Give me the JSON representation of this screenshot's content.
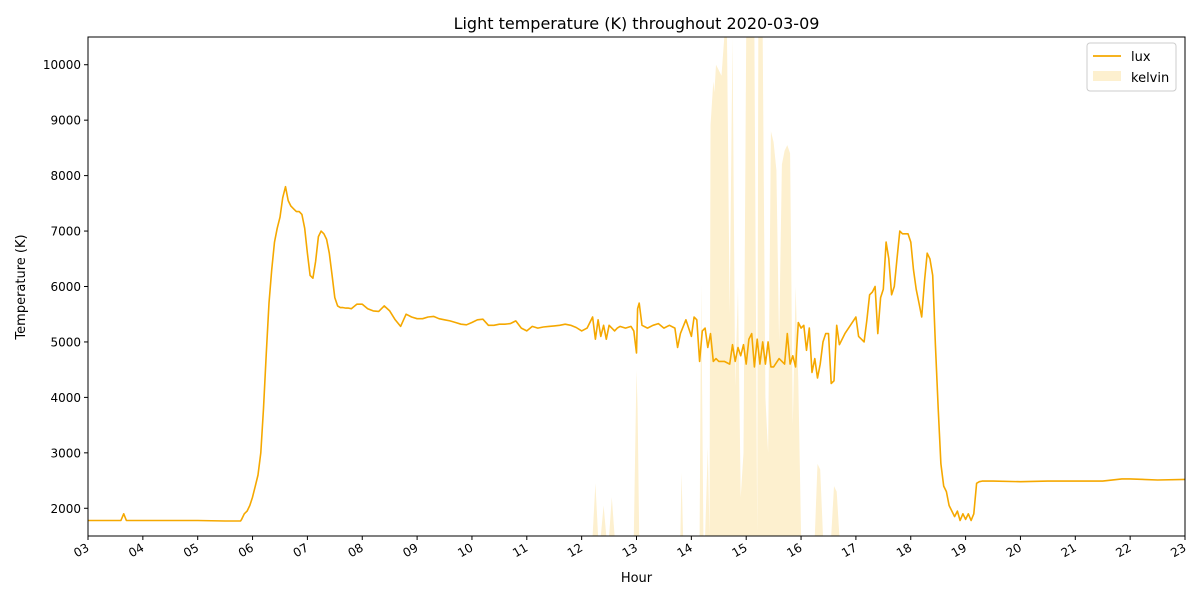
{
  "chart_data": {
    "type": "line",
    "title": "Light temperature (K) throughout 2020-03-09",
    "xlabel": "Hour",
    "ylabel": "Temperature (K)",
    "xlim": [
      3,
      23
    ],
    "ylim": [
      1500,
      10500
    ],
    "x_ticks": [
      "03",
      "04",
      "05",
      "06",
      "07",
      "08",
      "09",
      "10",
      "11",
      "12",
      "13",
      "14",
      "15",
      "16",
      "17",
      "18",
      "19",
      "20",
      "21",
      "22",
      "23"
    ],
    "y_ticks": [
      2000,
      3000,
      4000,
      5000,
      6000,
      7000,
      8000,
      9000,
      10000
    ],
    "grid": false,
    "legend": {
      "position": "top-right",
      "entries": [
        "lux",
        "kelvin"
      ]
    },
    "colors": {
      "lux": "#f5a800",
      "kelvin": "#fdf0cf"
    },
    "series": [
      {
        "name": "lux",
        "style": "line",
        "x": [
          3.0,
          3.5,
          3.6,
          3.65,
          3.7,
          4.0,
          4.5,
          5.0,
          5.5,
          5.78,
          5.8,
          5.85,
          5.9,
          5.95,
          6.0,
          6.05,
          6.1,
          6.15,
          6.2,
          6.25,
          6.3,
          6.35,
          6.4,
          6.45,
          6.5,
          6.55,
          6.6,
          6.65,
          6.7,
          6.75,
          6.8,
          6.85,
          6.9,
          6.95,
          7.0,
          7.05,
          7.1,
          7.15,
          7.2,
          7.25,
          7.3,
          7.35,
          7.4,
          7.45,
          7.5,
          7.55,
          7.6,
          7.65,
          7.7,
          7.75,
          7.8,
          7.9,
          8.0,
          8.1,
          8.2,
          8.3,
          8.4,
          8.5,
          8.6,
          8.7,
          8.8,
          8.9,
          9.0,
          9.1,
          9.2,
          9.3,
          9.4,
          9.5,
          9.6,
          9.7,
          9.8,
          9.9,
          10.0,
          10.1,
          10.2,
          10.3,
          10.4,
          10.5,
          10.6,
          10.7,
          10.8,
          10.9,
          11.0,
          11.1,
          11.2,
          11.3,
          11.4,
          11.5,
          11.6,
          11.7,
          11.8,
          11.9,
          12.0,
          12.1,
          12.2,
          12.25,
          12.3,
          12.35,
          12.4,
          12.45,
          12.5,
          12.55,
          12.6,
          12.65,
          12.7,
          12.8,
          12.9,
          12.95,
          13.0,
          13.02,
          13.05,
          13.1,
          13.2,
          13.3,
          13.4,
          13.5,
          13.6,
          13.7,
          13.75,
          13.8,
          13.9,
          14.0,
          14.05,
          14.1,
          14.15,
          14.2,
          14.25,
          14.3,
          14.35,
          14.4,
          14.45,
          14.5,
          14.6,
          14.7,
          14.75,
          14.8,
          14.85,
          14.9,
          14.95,
          15.0,
          15.05,
          15.1,
          15.15,
          15.2,
          15.25,
          15.3,
          15.35,
          15.4,
          15.45,
          15.5,
          15.6,
          15.7,
          15.75,
          15.8,
          15.85,
          15.9,
          15.95,
          16.0,
          16.05,
          16.1,
          16.15,
          16.2,
          16.25,
          16.3,
          16.35,
          16.4,
          16.45,
          16.5,
          16.55,
          16.6,
          16.65,
          16.7,
          16.8,
          16.9,
          17.0,
          17.05,
          17.1,
          17.15,
          17.2,
          17.25,
          17.3,
          17.35,
          17.4,
          17.45,
          17.5,
          17.55,
          17.6,
          17.65,
          17.7,
          17.75,
          17.8,
          17.85,
          17.9,
          17.95,
          18.0,
          18.05,
          18.1,
          18.15,
          18.2,
          18.25,
          18.3,
          18.35,
          18.4,
          18.45,
          18.5,
          18.55,
          18.6,
          18.65,
          18.7,
          18.75,
          18.8,
          18.85,
          18.9,
          18.95,
          19.0,
          19.05,
          19.1,
          19.15,
          19.2,
          19.25,
          19.3,
          19.5,
          20.0,
          20.5,
          21.0,
          21.5,
          21.85,
          22.0,
          22.5,
          23.0
        ],
        "y": [
          1780,
          1780,
          1780,
          1900,
          1780,
          1780,
          1780,
          1780,
          1770,
          1770,
          1800,
          1900,
          1950,
          2050,
          2200,
          2400,
          2600,
          3000,
          3800,
          4800,
          5700,
          6300,
          6800,
          7050,
          7250,
          7600,
          7800,
          7550,
          7450,
          7400,
          7350,
          7350,
          7300,
          7050,
          6600,
          6200,
          6150,
          6450,
          6900,
          7000,
          6950,
          6850,
          6600,
          6200,
          5800,
          5650,
          5620,
          5620,
          5610,
          5610,
          5600,
          5680,
          5680,
          5600,
          5560,
          5550,
          5650,
          5560,
          5400,
          5280,
          5500,
          5450,
          5420,
          5420,
          5450,
          5460,
          5420,
          5400,
          5380,
          5350,
          5320,
          5310,
          5350,
          5400,
          5410,
          5300,
          5300,
          5320,
          5320,
          5330,
          5380,
          5250,
          5200,
          5280,
          5250,
          5270,
          5280,
          5290,
          5300,
          5320,
          5300,
          5260,
          5200,
          5250,
          5450,
          5050,
          5400,
          5100,
          5300,
          5050,
          5300,
          5250,
          5200,
          5250,
          5280,
          5250,
          5280,
          5200,
          4800,
          5600,
          5700,
          5300,
          5250,
          5300,
          5330,
          5250,
          5300,
          5250,
          4900,
          5150,
          5400,
          5100,
          5450,
          5400,
          4650,
          5200,
          5250,
          4900,
          5150,
          4650,
          4700,
          4650,
          4650,
          4600,
          4950,
          4650,
          4900,
          4750,
          4950,
          4600,
          5050,
          5150,
          4550,
          5050,
          4600,
          5000,
          4600,
          5000,
          4550,
          4550,
          4700,
          4600,
          5150,
          4600,
          4750,
          4550,
          5350,
          5250,
          5300,
          4850,
          5250,
          4450,
          4700,
          4350,
          4600,
          5000,
          5150,
          5150,
          4250,
          4300,
          5300,
          4950,
          5150,
          5300,
          5450,
          5100,
          5050,
          5000,
          5400,
          5850,
          5900,
          6000,
          5150,
          5800,
          5950,
          6800,
          6500,
          5850,
          6000,
          6500,
          7000,
          6950,
          6950,
          6950,
          6800,
          6300,
          5950,
          5700,
          5450,
          6100,
          6600,
          6500,
          6200,
          4950,
          3800,
          2800,
          2400,
          2300,
          2050,
          1950,
          1850,
          1950,
          1780,
          1900,
          1800,
          1900,
          1780,
          1900,
          2450,
          2480,
          2490,
          2490,
          2480,
          2490,
          2490,
          2490,
          2530,
          2530,
          2510,
          2520
        ]
      },
      {
        "name": "kelvin",
        "style": "fill",
        "x": [
          12.2,
          12.25,
          12.3,
          12.35,
          12.4,
          12.45,
          12.5,
          12.55,
          12.6,
          12.65,
          12.7,
          12.95,
          13.0,
          13.02,
          13.05,
          13.1,
          13.8,
          13.82,
          13.85,
          13.9,
          14.15,
          14.18,
          14.22,
          14.25,
          14.3,
          14.33,
          14.35,
          14.4,
          14.42,
          14.45,
          14.5,
          14.55,
          14.6,
          14.65,
          14.7,
          14.75,
          14.8,
          14.85,
          14.9,
          14.95,
          15.0,
          15.05,
          15.1,
          15.15,
          15.2,
          15.22,
          15.25,
          15.3,
          15.35,
          15.4,
          15.45,
          15.5,
          15.55,
          15.6,
          15.65,
          15.7,
          15.75,
          15.8,
          15.85,
          15.9,
          15.95,
          16.0,
          16.05,
          16.1,
          16.25,
          16.3,
          16.35,
          16.4,
          16.55,
          16.6,
          16.65,
          16.7
        ],
        "y": [
          1500,
          2450,
          1500,
          1500,
          2050,
          1500,
          1500,
          2200,
          1500,
          1500,
          1500,
          1500,
          4500,
          3800,
          1500,
          1500,
          1500,
          2650,
          1500,
          1500,
          1500,
          6050,
          1500,
          1500,
          3100,
          1500,
          8900,
          9700,
          9500,
          10000,
          9900,
          9800,
          10500,
          10500,
          5500,
          10500,
          4200,
          6000,
          2200,
          3000,
          10500,
          10500,
          10500,
          10500,
          1500,
          10500,
          10500,
          10500,
          4000,
          3000,
          8800,
          8600,
          8100,
          5000,
          8200,
          8450,
          8550,
          8400,
          3500,
          6000,
          4300,
          1500,
          1500,
          1500,
          1500,
          2800,
          2700,
          1500,
          1500,
          2400,
          2300,
          1500
        ]
      }
    ]
  }
}
